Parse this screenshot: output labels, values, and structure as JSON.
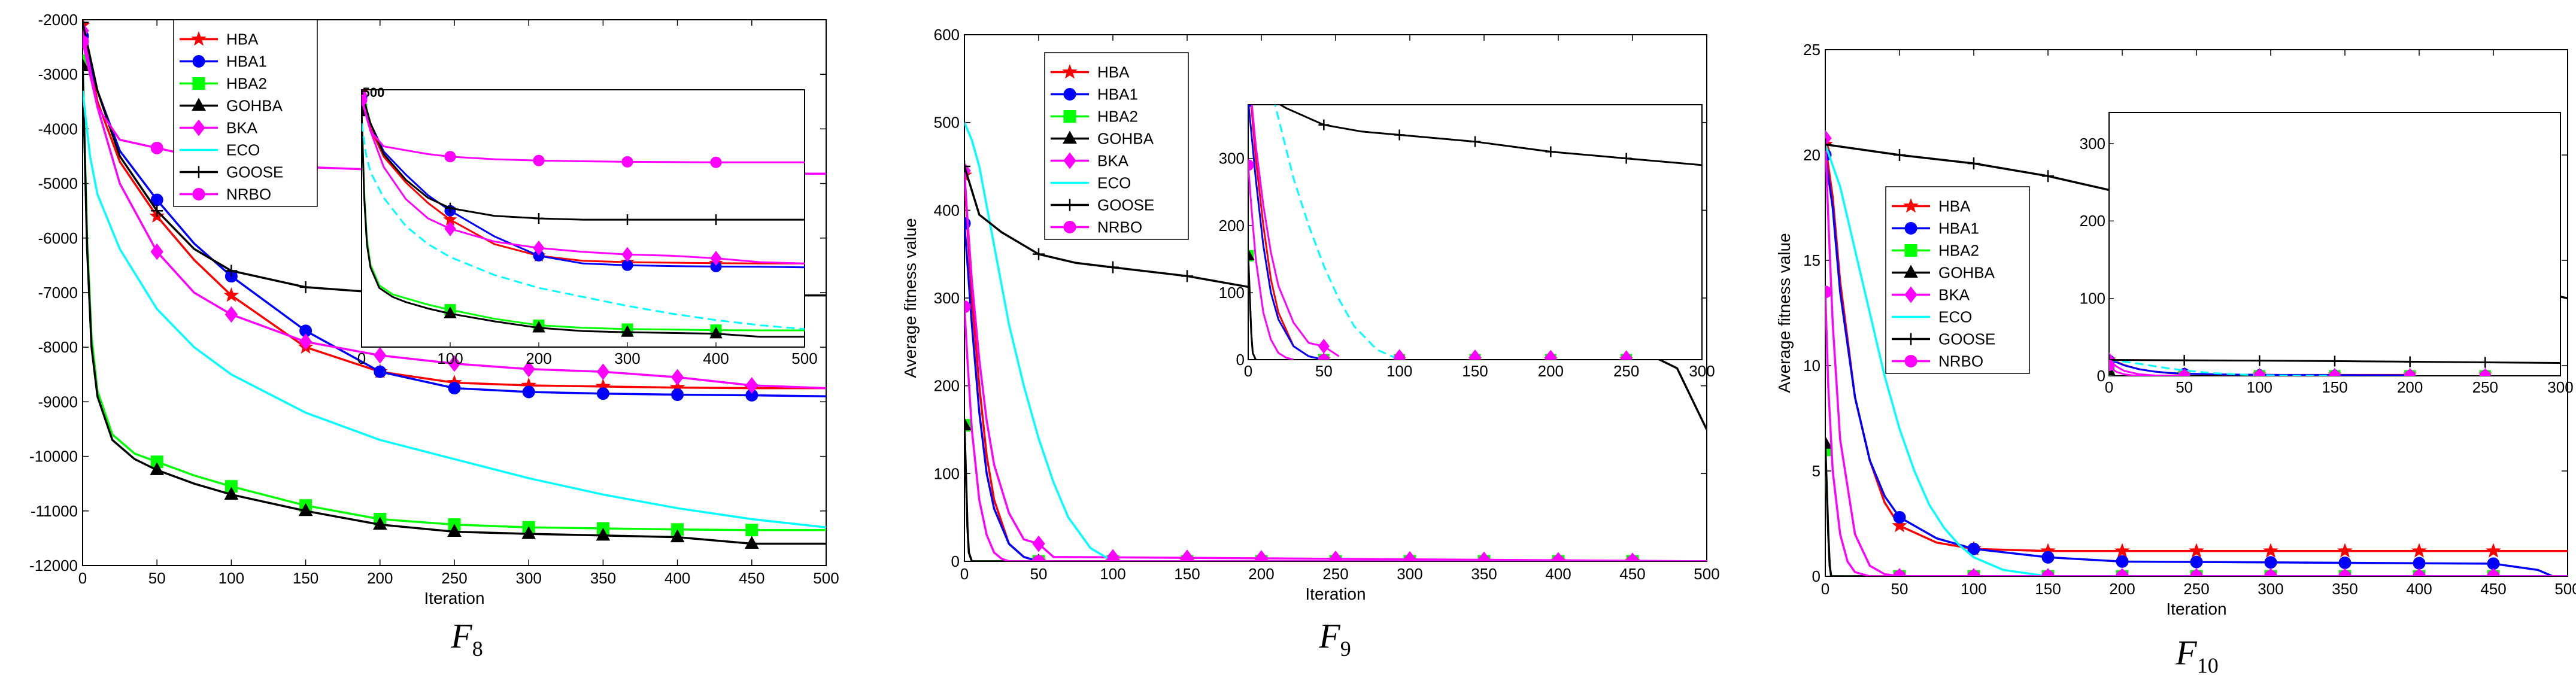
{
  "series_colors": {
    "HBA": "#ff0000",
    "HBA1": "#0000ff",
    "HBA2": "#00ff00",
    "GOHBA": "#000000",
    "BKA": "#ff00ff",
    "ECO": "#00ffff",
    "GOOSE": "#000000",
    "NRBO": "#ff00ff"
  },
  "series_markers": {
    "HBA": "star",
    "HBA1": "circle",
    "HBA2": "square",
    "GOHBA": "triangle",
    "BKA": "diamond",
    "ECO": "none",
    "GOOSE": "plus",
    "NRBO": "circle"
  },
  "chart_data": [
    {
      "type": "line",
      "title": "",
      "caption": "F",
      "caption_sub": "8",
      "xlabel": "Iteration",
      "ylabel": "",
      "xlim": [
        0,
        500
      ],
      "ylim": [
        -12000,
        -2000
      ],
      "xticks": [
        0,
        50,
        100,
        150,
        200,
        250,
        300,
        350,
        400,
        450,
        500
      ],
      "yticks": [
        -12000,
        -11000,
        -10000,
        -9000,
        -8000,
        -7000,
        -6000,
        -5000,
        -4000,
        -3000,
        -2000
      ],
      "legend_position": "top-left",
      "legend": [
        "HBA",
        "HBA1",
        "HBA2",
        "GOHBA",
        "BKA",
        "ECO",
        "GOOSE",
        "NRBO"
      ],
      "series": [
        {
          "name": "HBA",
          "x": [
            0,
            10,
            25,
            50,
            75,
            100,
            150,
            200,
            250,
            300,
            350,
            400,
            450,
            500
          ],
          "y": [
            -2100,
            -3500,
            -4600,
            -5600,
            -6400,
            -7050,
            -8000,
            -8450,
            -8650,
            -8700,
            -8720,
            -8740,
            -8750,
            -8750
          ]
        },
        {
          "name": "HBA1",
          "x": [
            0,
            10,
            25,
            50,
            75,
            100,
            150,
            200,
            250,
            300,
            350,
            400,
            450,
            500
          ],
          "y": [
            -2300,
            -3300,
            -4400,
            -5300,
            -6100,
            -6700,
            -7700,
            -8450,
            -8750,
            -8820,
            -8850,
            -8870,
            -8880,
            -8900
          ]
        },
        {
          "name": "HBA2",
          "x": [
            0,
            3,
            6,
            10,
            20,
            35,
            50,
            75,
            100,
            150,
            200,
            250,
            300,
            350,
            400,
            450,
            500
          ],
          "y": [
            -2750,
            -6000,
            -7800,
            -8800,
            -9600,
            -9950,
            -10100,
            -10350,
            -10550,
            -10900,
            -11150,
            -11250,
            -11300,
            -11320,
            -11340,
            -11350,
            -11350
          ]
        },
        {
          "name": "GOHBA",
          "x": [
            0,
            3,
            6,
            10,
            20,
            35,
            50,
            75,
            100,
            150,
            200,
            250,
            300,
            350,
            400,
            450,
            500
          ],
          "y": [
            -2850,
            -6200,
            -8000,
            -8900,
            -9700,
            -10050,
            -10250,
            -10500,
            -10700,
            -11000,
            -11250,
            -11380,
            -11420,
            -11450,
            -11480,
            -11600,
            -11600
          ]
        },
        {
          "name": "BKA",
          "x": [
            0,
            10,
            25,
            50,
            75,
            100,
            150,
            200,
            250,
            300,
            350,
            400,
            450,
            500
          ],
          "y": [
            -2200,
            -3600,
            -5000,
            -6250,
            -7000,
            -7400,
            -7900,
            -8150,
            -8300,
            -8400,
            -8450,
            -8550,
            -8700,
            -8750
          ]
        },
        {
          "name": "ECO",
          "x": [
            0,
            5,
            10,
            25,
            50,
            75,
            100,
            150,
            200,
            250,
            300,
            350,
            400,
            450,
            500
          ],
          "y": [
            -3300,
            -4500,
            -5200,
            -6200,
            -7300,
            -8000,
            -8500,
            -9200,
            -9700,
            -10050,
            -10400,
            -10700,
            -10950,
            -11150,
            -11300
          ]
        },
        {
          "name": "GOOSE",
          "x": [
            0,
            10,
            25,
            50,
            75,
            100,
            150,
            200,
            250,
            300,
            350,
            400,
            450,
            500
          ],
          "y": [
            -2050,
            -3300,
            -4500,
            -5500,
            -6200,
            -6600,
            -6900,
            -7000,
            -7050,
            -7050,
            -7050,
            -7050,
            -7050,
            -7050
          ]
        },
        {
          "name": "NRBO",
          "x": [
            0,
            10,
            25,
            50,
            75,
            100,
            150,
            200,
            250,
            300,
            350,
            400,
            450,
            500
          ],
          "y": [
            -2400,
            -3600,
            -4200,
            -4350,
            -4500,
            -4600,
            -4700,
            -4750,
            -4780,
            -4800,
            -4810,
            -4820,
            -4820,
            -4820
          ]
        }
      ],
      "inset": {
        "xlim": [
          0,
          500
        ],
        "ylim": [
          -12000,
          -2000
        ],
        "xticks": [
          0,
          100,
          200,
          300,
          400,
          500
        ],
        "ytick_label": "500"
      }
    },
    {
      "type": "line",
      "title": "",
      "caption": "F",
      "caption_sub": "9",
      "xlabel": "Iteration",
      "ylabel": "Average fitness value",
      "xlim": [
        0,
        500
      ],
      "ylim": [
        0,
        600
      ],
      "xticks": [
        0,
        50,
        100,
        150,
        200,
        250,
        300,
        350,
        400,
        450,
        500
      ],
      "yticks": [
        0,
        100,
        200,
        300,
        400,
        500,
        600
      ],
      "legend_position": "top-left",
      "legend": [
        "HBA",
        "HBA1",
        "HBA2",
        "GOHBA",
        "BKA",
        "ECO",
        "GOOSE",
        "NRBO"
      ],
      "series": [
        {
          "name": "HBA",
          "x": [
            0,
            2,
            5,
            10,
            15,
            20,
            30,
            40,
            50,
            500
          ],
          "y": [
            440,
            380,
            300,
            200,
            120,
            70,
            20,
            5,
            0,
            0
          ]
        },
        {
          "name": "HBA1",
          "x": [
            0,
            2,
            5,
            10,
            15,
            20,
            30,
            40,
            50,
            500
          ],
          "y": [
            385,
            340,
            270,
            170,
            100,
            60,
            20,
            5,
            0,
            0
          ]
        },
        {
          "name": "HBA2",
          "x": [
            0,
            1,
            2,
            3,
            5,
            500
          ],
          "y": [
            155,
            100,
            40,
            10,
            0,
            0
          ]
        },
        {
          "name": "GOHBA",
          "x": [
            0,
            1,
            2,
            3,
            5,
            500
          ],
          "y": [
            155,
            100,
            40,
            10,
            0,
            0
          ]
        },
        {
          "name": "BKA",
          "x": [
            0,
            2,
            5,
            10,
            15,
            20,
            30,
            40,
            50,
            60,
            500
          ],
          "y": [
            445,
            390,
            320,
            230,
            160,
            110,
            55,
            25,
            20,
            5,
            0
          ]
        },
        {
          "name": "ECO",
          "x": [
            0,
            5,
            10,
            20,
            30,
            40,
            50,
            60,
            70,
            85,
            100,
            500
          ],
          "y": [
            500,
            480,
            450,
            360,
            270,
            200,
            140,
            90,
            50,
            15,
            0,
            0
          ]
        },
        {
          "name": "GOOSE",
          "x": [
            0,
            10,
            25,
            50,
            75,
            100,
            150,
            200,
            250,
            300,
            350,
            400,
            450,
            480,
            500
          ],
          "y": [
            450,
            395,
            375,
            350,
            340,
            335,
            325,
            310,
            300,
            290,
            280,
            265,
            245,
            220,
            150
          ]
        },
        {
          "name": "NRBO",
          "x": [
            0,
            2,
            5,
            10,
            15,
            20,
            25,
            30,
            500
          ],
          "y": [
            290,
            230,
            150,
            70,
            30,
            10,
            3,
            0,
            0
          ]
        }
      ],
      "inset": {
        "xlim": [
          0,
          300
        ],
        "ylim": [
          0,
          380
        ],
        "xticks": [
          0,
          50,
          100,
          150,
          200,
          250,
          300
        ],
        "yticks": [
          0,
          100,
          200,
          300
        ]
      }
    },
    {
      "type": "line",
      "title": "",
      "caption": "F",
      "caption_sub": "10",
      "xlabel": "Iteration",
      "ylabel": "Average fitness value",
      "xlim": [
        0,
        500
      ],
      "ylim": [
        0,
        25
      ],
      "xticks": [
        0,
        50,
        100,
        150,
        200,
        250,
        300,
        350,
        400,
        450,
        500
      ],
      "yticks": [
        0,
        5,
        10,
        15,
        20,
        25
      ],
      "legend_position": "center-left",
      "legend": [
        "HBA",
        "HBA1",
        "HBA2",
        "GOHBA",
        "BKA",
        "ECO",
        "GOOSE",
        "NRBO"
      ],
      "series": [
        {
          "name": "HBA",
          "x": [
            0,
            5,
            10,
            20,
            30,
            40,
            50,
            75,
            100,
            150,
            200,
            500
          ],
          "y": [
            20.5,
            18,
            14,
            8.5,
            5.5,
            3.5,
            2.4,
            1.6,
            1.3,
            1.2,
            1.2,
            1.2
          ]
        },
        {
          "name": "HBA1",
          "x": [
            0,
            5,
            10,
            20,
            30,
            40,
            50,
            75,
            100,
            150,
            200,
            450,
            480,
            490
          ],
          "y": [
            20,
            17.5,
            13.5,
            8.5,
            5.5,
            3.8,
            2.8,
            1.8,
            1.3,
            0.9,
            0.7,
            0.6,
            0.3,
            0
          ]
        },
        {
          "name": "HBA2",
          "x": [
            0,
            1,
            2,
            3,
            4,
            500
          ],
          "y": [
            6,
            4,
            2,
            0.5,
            0,
            0
          ]
        },
        {
          "name": "GOHBA",
          "x": [
            0,
            1,
            2,
            3,
            4,
            500
          ],
          "y": [
            6.3,
            4.2,
            2,
            0.5,
            0,
            0
          ]
        },
        {
          "name": "BKA",
          "x": [
            0,
            2,
            5,
            10,
            20,
            30,
            40,
            50,
            500
          ],
          "y": [
            20.8,
            17,
            12,
            6.5,
            2,
            0.5,
            0.1,
            0,
            0
          ]
        },
        {
          "name": "ECO",
          "x": [
            0,
            5,
            10,
            20,
            30,
            40,
            50,
            60,
            70,
            80,
            90,
            100,
            120,
            150,
            500
          ],
          "y": [
            20.5,
            19.5,
            18.5,
            15.5,
            12.5,
            9.5,
            7,
            5,
            3.4,
            2.3,
            1.5,
            0.9,
            0.3,
            0,
            0
          ]
        },
        {
          "name": "GOOSE",
          "x": [
            0,
            50,
            100,
            150,
            200,
            250,
            300,
            350,
            400,
            450,
            500
          ],
          "y": [
            20.5,
            20,
            19.6,
            19,
            18.2,
            17.4,
            16.6,
            15.8,
            14.9,
            14,
            13.2
          ]
        },
        {
          "name": "NRBO",
          "x": [
            0,
            2,
            5,
            10,
            15,
            20,
            30,
            500
          ],
          "y": [
            13.5,
            9,
            5,
            2,
            0.7,
            0.2,
            0,
            0
          ]
        }
      ],
      "inset": {
        "xlim": [
          0,
          300
        ],
        "ylim": [
          0,
          340
        ],
        "xticks": [
          0,
          50,
          100,
          150,
          200,
          250,
          300
        ],
        "yticks": [
          0,
          100,
          200,
          300
        ]
      }
    }
  ]
}
